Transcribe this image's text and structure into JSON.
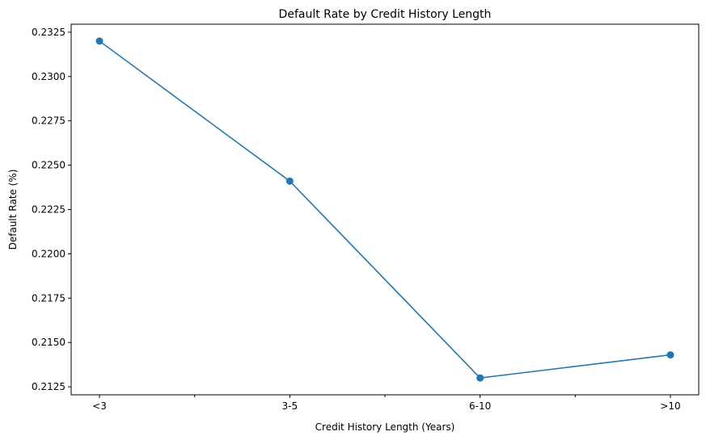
{
  "chart_data": {
    "type": "line",
    "title": "Default Rate by Credit History Length",
    "xlabel": "Credit History Length (Years)",
    "ylabel": "Default Rate (%)",
    "categories": [
      "<3",
      "3-5",
      "6-10",
      ">10"
    ],
    "series": [
      {
        "values": [
          0.232,
          0.2241,
          0.213,
          0.2143
        ],
        "color": "#1f77b4",
        "marker": "circle"
      }
    ],
    "yticks": [
      "0.2125",
      "0.2150",
      "0.2175",
      "0.2200",
      "0.2225",
      "0.2250",
      "0.2275",
      "0.2300",
      "0.2325"
    ],
    "ylim": [
      0.21205,
      0.23295
    ],
    "minor_xticks": true,
    "grid": false,
    "legend": "none"
  }
}
